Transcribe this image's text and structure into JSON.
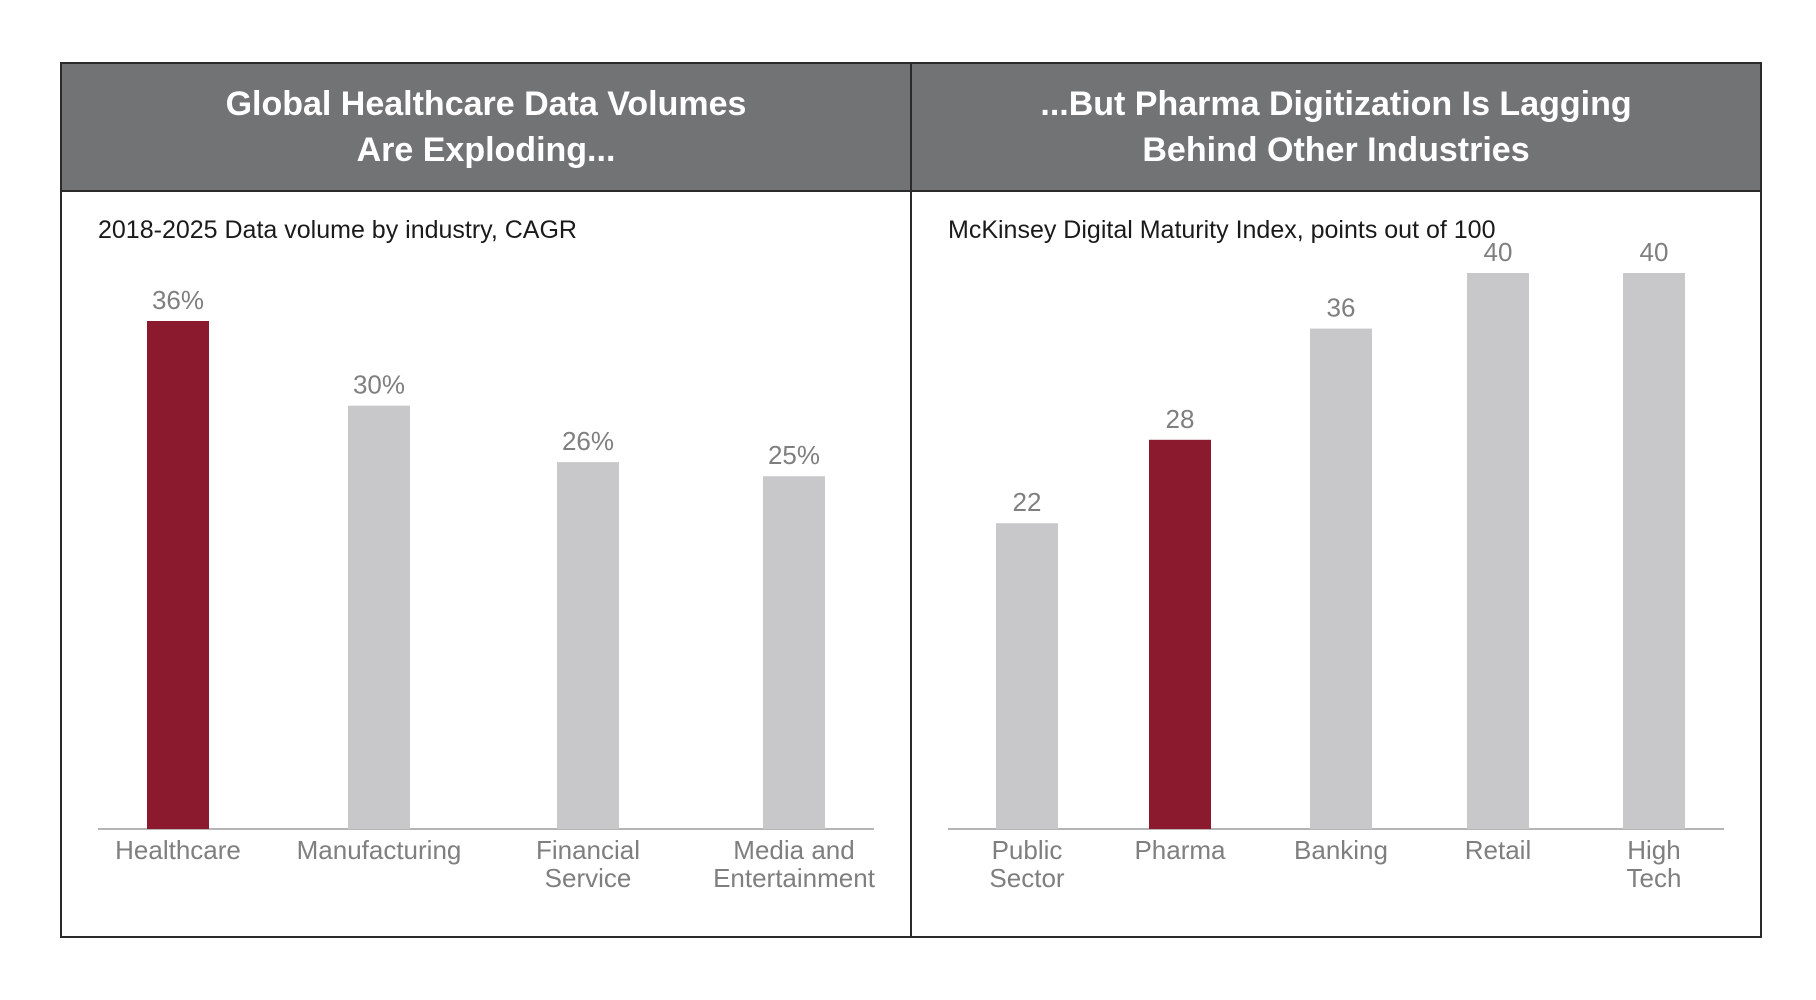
{
  "colors": {
    "header_bg": "#727375",
    "highlight_bar": "#8b1a2f",
    "default_bar": "#c8c8ca",
    "label_text": "#7f7f7f"
  },
  "panels": [
    {
      "title": "Global Healthcare Data Volumes\nAre Exploding...",
      "subtitle": "2018-2025 Data volume by industry, CAGR"
    },
    {
      "title": "...But Pharma Digitization Is Lagging\nBehind Other Industries",
      "subtitle": "McKinsey Digital Maturity Index, points out of 100"
    }
  ],
  "chart_data": [
    {
      "type": "bar",
      "title": "2018-2025 Data volume by industry, CAGR",
      "categories": [
        "Healthcare",
        "Manufacturing",
        "Financial\nService",
        "Media and\nEntertainment"
      ],
      "values": [
        36,
        30,
        26,
        25
      ],
      "value_labels": [
        "36%",
        "30%",
        "26%",
        "25%"
      ],
      "highlight": [
        "Healthcare"
      ],
      "ylim": [
        0,
        36
      ],
      "xlabel": "",
      "ylabel": "",
      "grid": false
    },
    {
      "type": "bar",
      "title": "McKinsey Digital Maturity Index, points out of 100",
      "categories": [
        "Public\nSector",
        "Pharma",
        "Banking",
        "Retail",
        "High\nTech"
      ],
      "values": [
        22,
        28,
        36,
        40,
        40
      ],
      "value_labels": [
        "22",
        "28",
        "36",
        "40",
        "40"
      ],
      "highlight": [
        "Pharma"
      ],
      "ylim": [
        0,
        40
      ],
      "xlabel": "",
      "ylabel": "",
      "grid": false
    }
  ]
}
